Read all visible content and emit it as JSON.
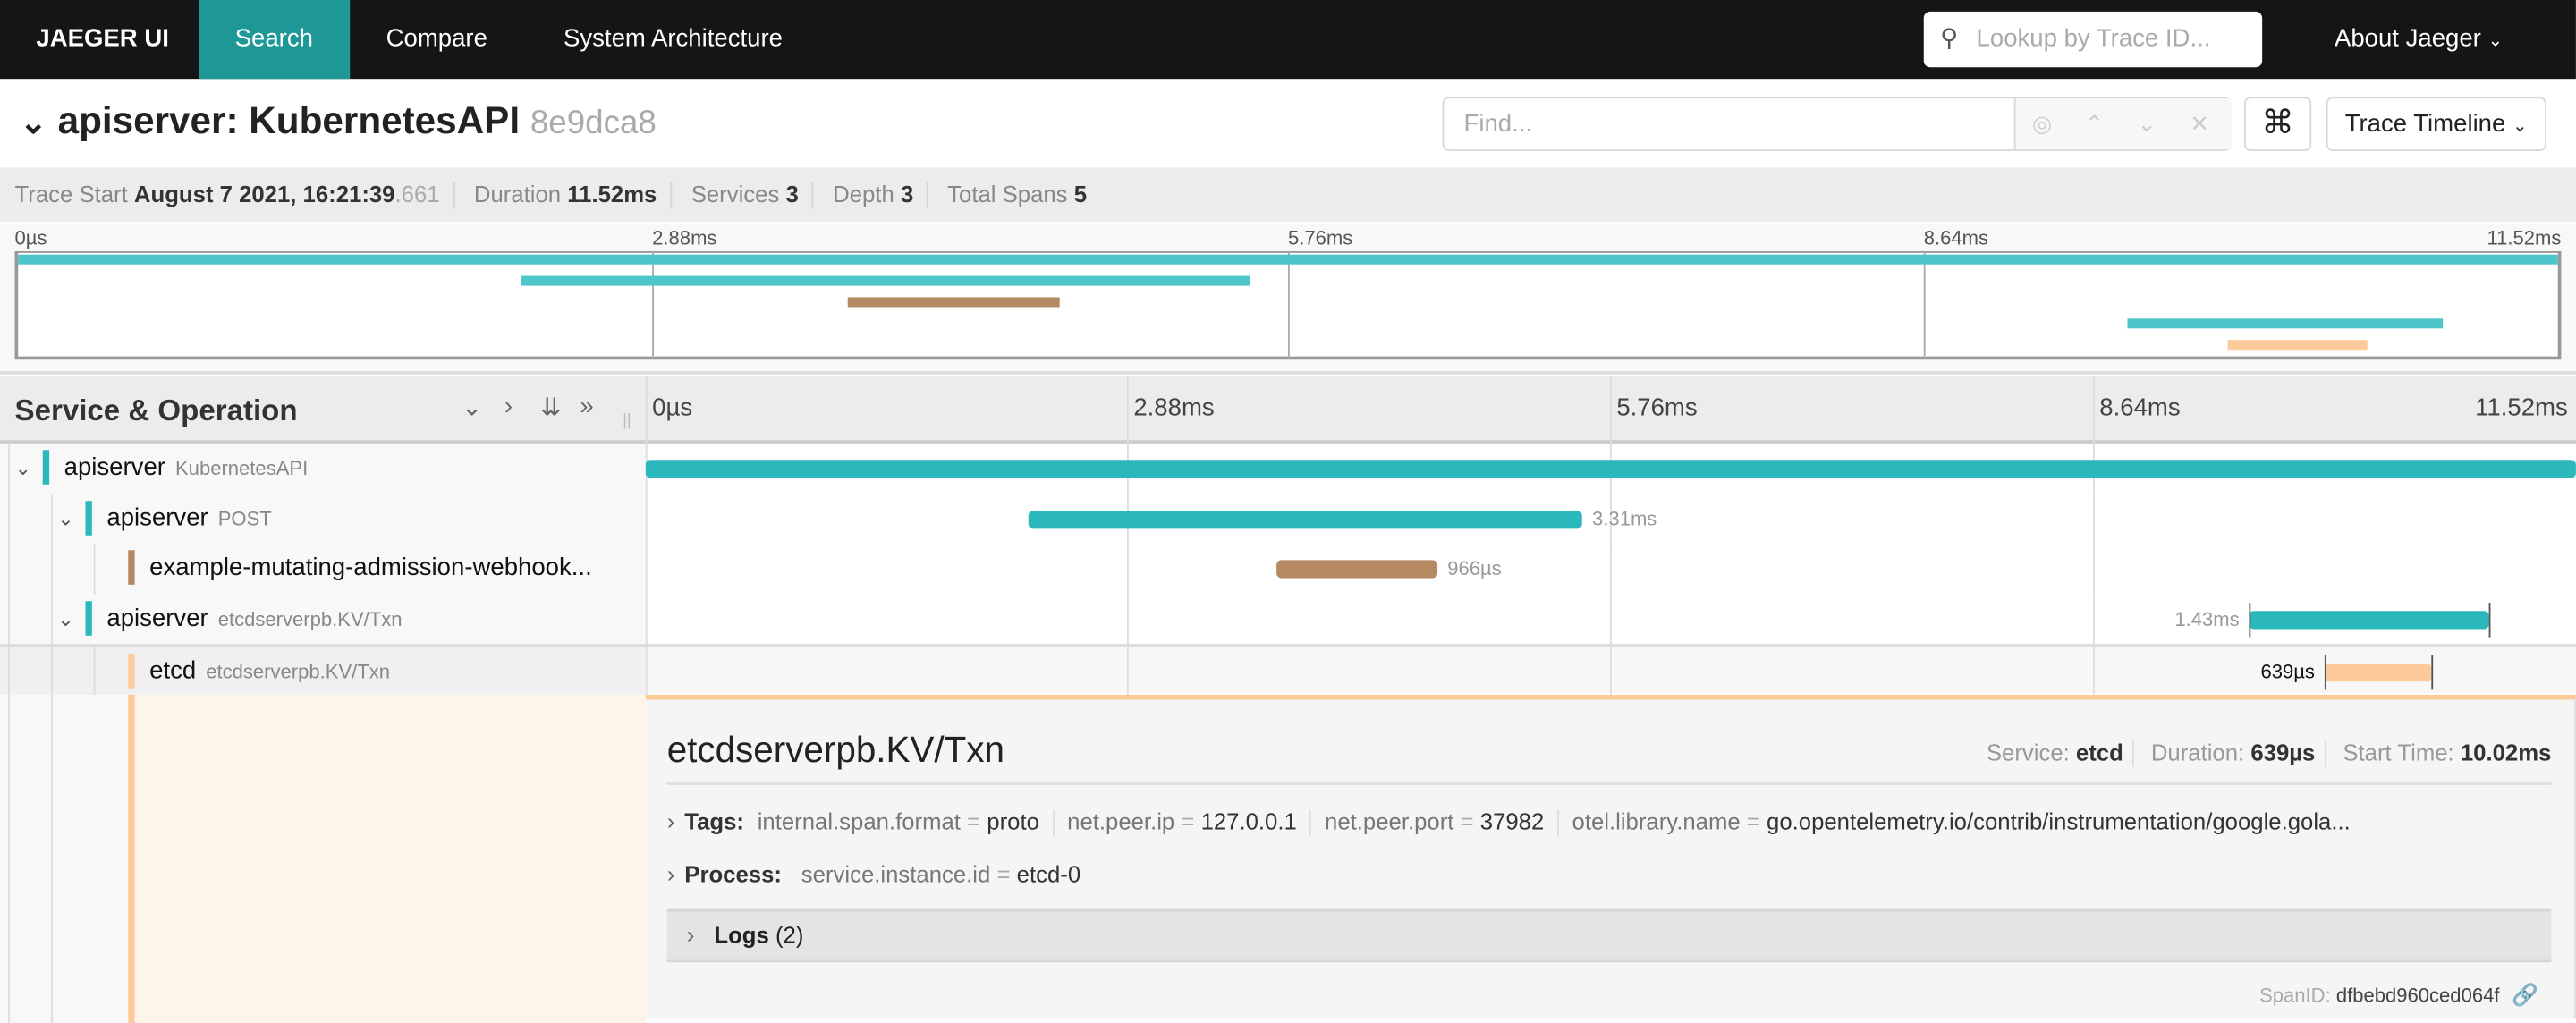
{
  "nav": {
    "brand": "JAEGER UI",
    "tabs": [
      {
        "label": "Search",
        "active": true
      },
      {
        "label": "Compare"
      },
      {
        "label": "System Architecture"
      }
    ],
    "lookup_placeholder": "Lookup by Trace ID...",
    "about": "About Jaeger"
  },
  "trace": {
    "title": "apiserver: KubernetesAPI",
    "trace_id": "8e9dca8",
    "find_placeholder": "Find...",
    "view_select": "Trace Timeline"
  },
  "summary": {
    "start_label": "Trace Start",
    "start_date": "August 7 2021, 16:21:39",
    "start_ms": ".661",
    "duration_label": "Duration",
    "duration": "11.52ms",
    "services_label": "Services",
    "services": "3",
    "depth_label": "Depth",
    "depth": "3",
    "spans_label": "Total Spans",
    "spans": "5"
  },
  "ticks": [
    "0µs",
    "2.88ms",
    "5.76ms",
    "8.64ms",
    "11.52ms"
  ],
  "header": {
    "title": "Service & Operation"
  },
  "colors": {
    "apiserver": "#2ab8bd",
    "apiserver_mini": "#4dc6cb",
    "webhook": "#b58961",
    "etcd": "#fdca9b",
    "nav": "#151515",
    "accent": "#1e9896"
  },
  "trace_duration_ms": 11.52,
  "spans": [
    {
      "service": "apiserver",
      "operation": "KubernetesAPI",
      "depth": 0,
      "start_ms": 0,
      "duration_ms": 11.52,
      "duration_label": "",
      "color": "#2ab8bd",
      "expanded": true
    },
    {
      "service": "apiserver",
      "operation": "POST",
      "depth": 1,
      "start_ms": 2.28,
      "duration_ms": 3.31,
      "duration_label": "3.31ms",
      "color": "#2ab8bd",
      "expanded": true
    },
    {
      "service": "example-mutating-admission-webhook...",
      "operation": "",
      "depth": 2,
      "start_ms": 3.76,
      "duration_ms": 0.966,
      "duration_label": "966µs",
      "color": "#b58961"
    },
    {
      "service": "apiserver",
      "operation": "etcdserverpb.KV/Txn",
      "depth": 1,
      "start_ms": 9.57,
      "duration_ms": 1.43,
      "duration_label": "1.43ms",
      "color": "#2ab8bd",
      "expanded": true
    },
    {
      "service": "etcd",
      "operation": "etcdserverpb.KV/Txn",
      "depth": 2,
      "start_ms": 10.02,
      "duration_ms": 0.639,
      "duration_label": "639µs",
      "color": "#fdca9b",
      "selected": true
    }
  ],
  "detail": {
    "operation": "etcdserverpb.KV/Txn",
    "service_label": "Service:",
    "service": "etcd",
    "duration_label": "Duration:",
    "duration": "639µs",
    "start_label": "Start Time:",
    "start": "10.02ms",
    "tags_label": "Tags:",
    "tags": [
      {
        "k": "internal.span.format",
        "v": "proto"
      },
      {
        "k": "net.peer.ip",
        "v": "127.0.0.1"
      },
      {
        "k": "net.peer.port",
        "v": "37982"
      },
      {
        "k": "otel.library.name",
        "v": "go.opentelemetry.io/contrib/instrumentation/google.gola..."
      }
    ],
    "process_label": "Process:",
    "process": [
      {
        "k": "service.instance.id",
        "v": "etcd-0"
      }
    ],
    "logs_label": "Logs",
    "logs_count": "(2)",
    "spanid_label": "SpanID:",
    "spanid": "dfbebd960ced064f"
  }
}
